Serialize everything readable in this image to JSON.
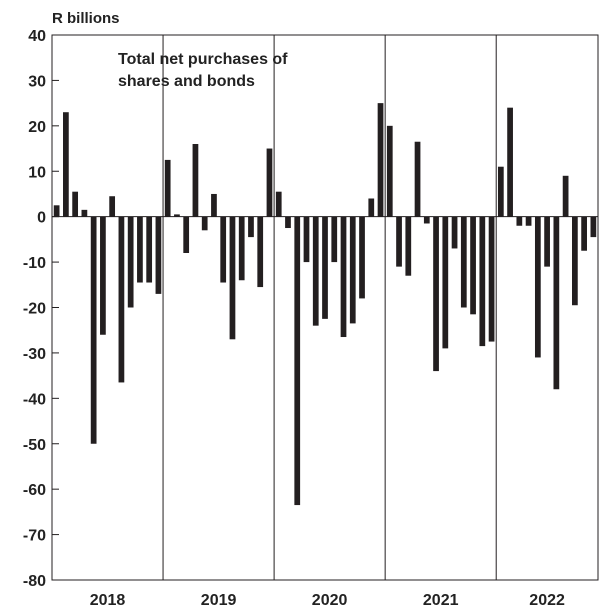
{
  "chart_data": {
    "type": "bar",
    "unit_label": "R billions",
    "annotation": [
      "Total net purchases of",
      "shares and bonds"
    ],
    "ylim": [
      -80,
      40
    ],
    "y_ticks": [
      40,
      30,
      20,
      10,
      0,
      -10,
      -20,
      -30,
      -40,
      -50,
      -60,
      -70,
      -80
    ],
    "years": [
      "2018",
      "2019",
      "2020",
      "2021",
      "2022"
    ],
    "bar_color": "#231f20",
    "grid": false,
    "series": [
      {
        "values": [
          2.5,
          23,
          5.5,
          1.5,
          -50,
          -26,
          4.5,
          -36.5,
          -20,
          -14.5,
          -14.5,
          -17,
          12.5,
          0.5,
          -8,
          16,
          -3,
          5,
          -14.5,
          -27,
          -14,
          -4.5,
          -15.5,
          15,
          5.5,
          -2.5,
          -63.5,
          -10,
          -24,
          -22.5,
          -10,
          -26.5,
          -23.5,
          -18,
          4,
          25,
          20,
          -11,
          -13,
          16.5,
          -1.5,
          -34,
          -29,
          -7,
          -20,
          -21.5,
          -28.5,
          -27.5,
          11,
          24,
          -2,
          -2,
          -31,
          -11,
          -38,
          9,
          -19.5,
          -7.5,
          -4.5
        ]
      }
    ]
  }
}
